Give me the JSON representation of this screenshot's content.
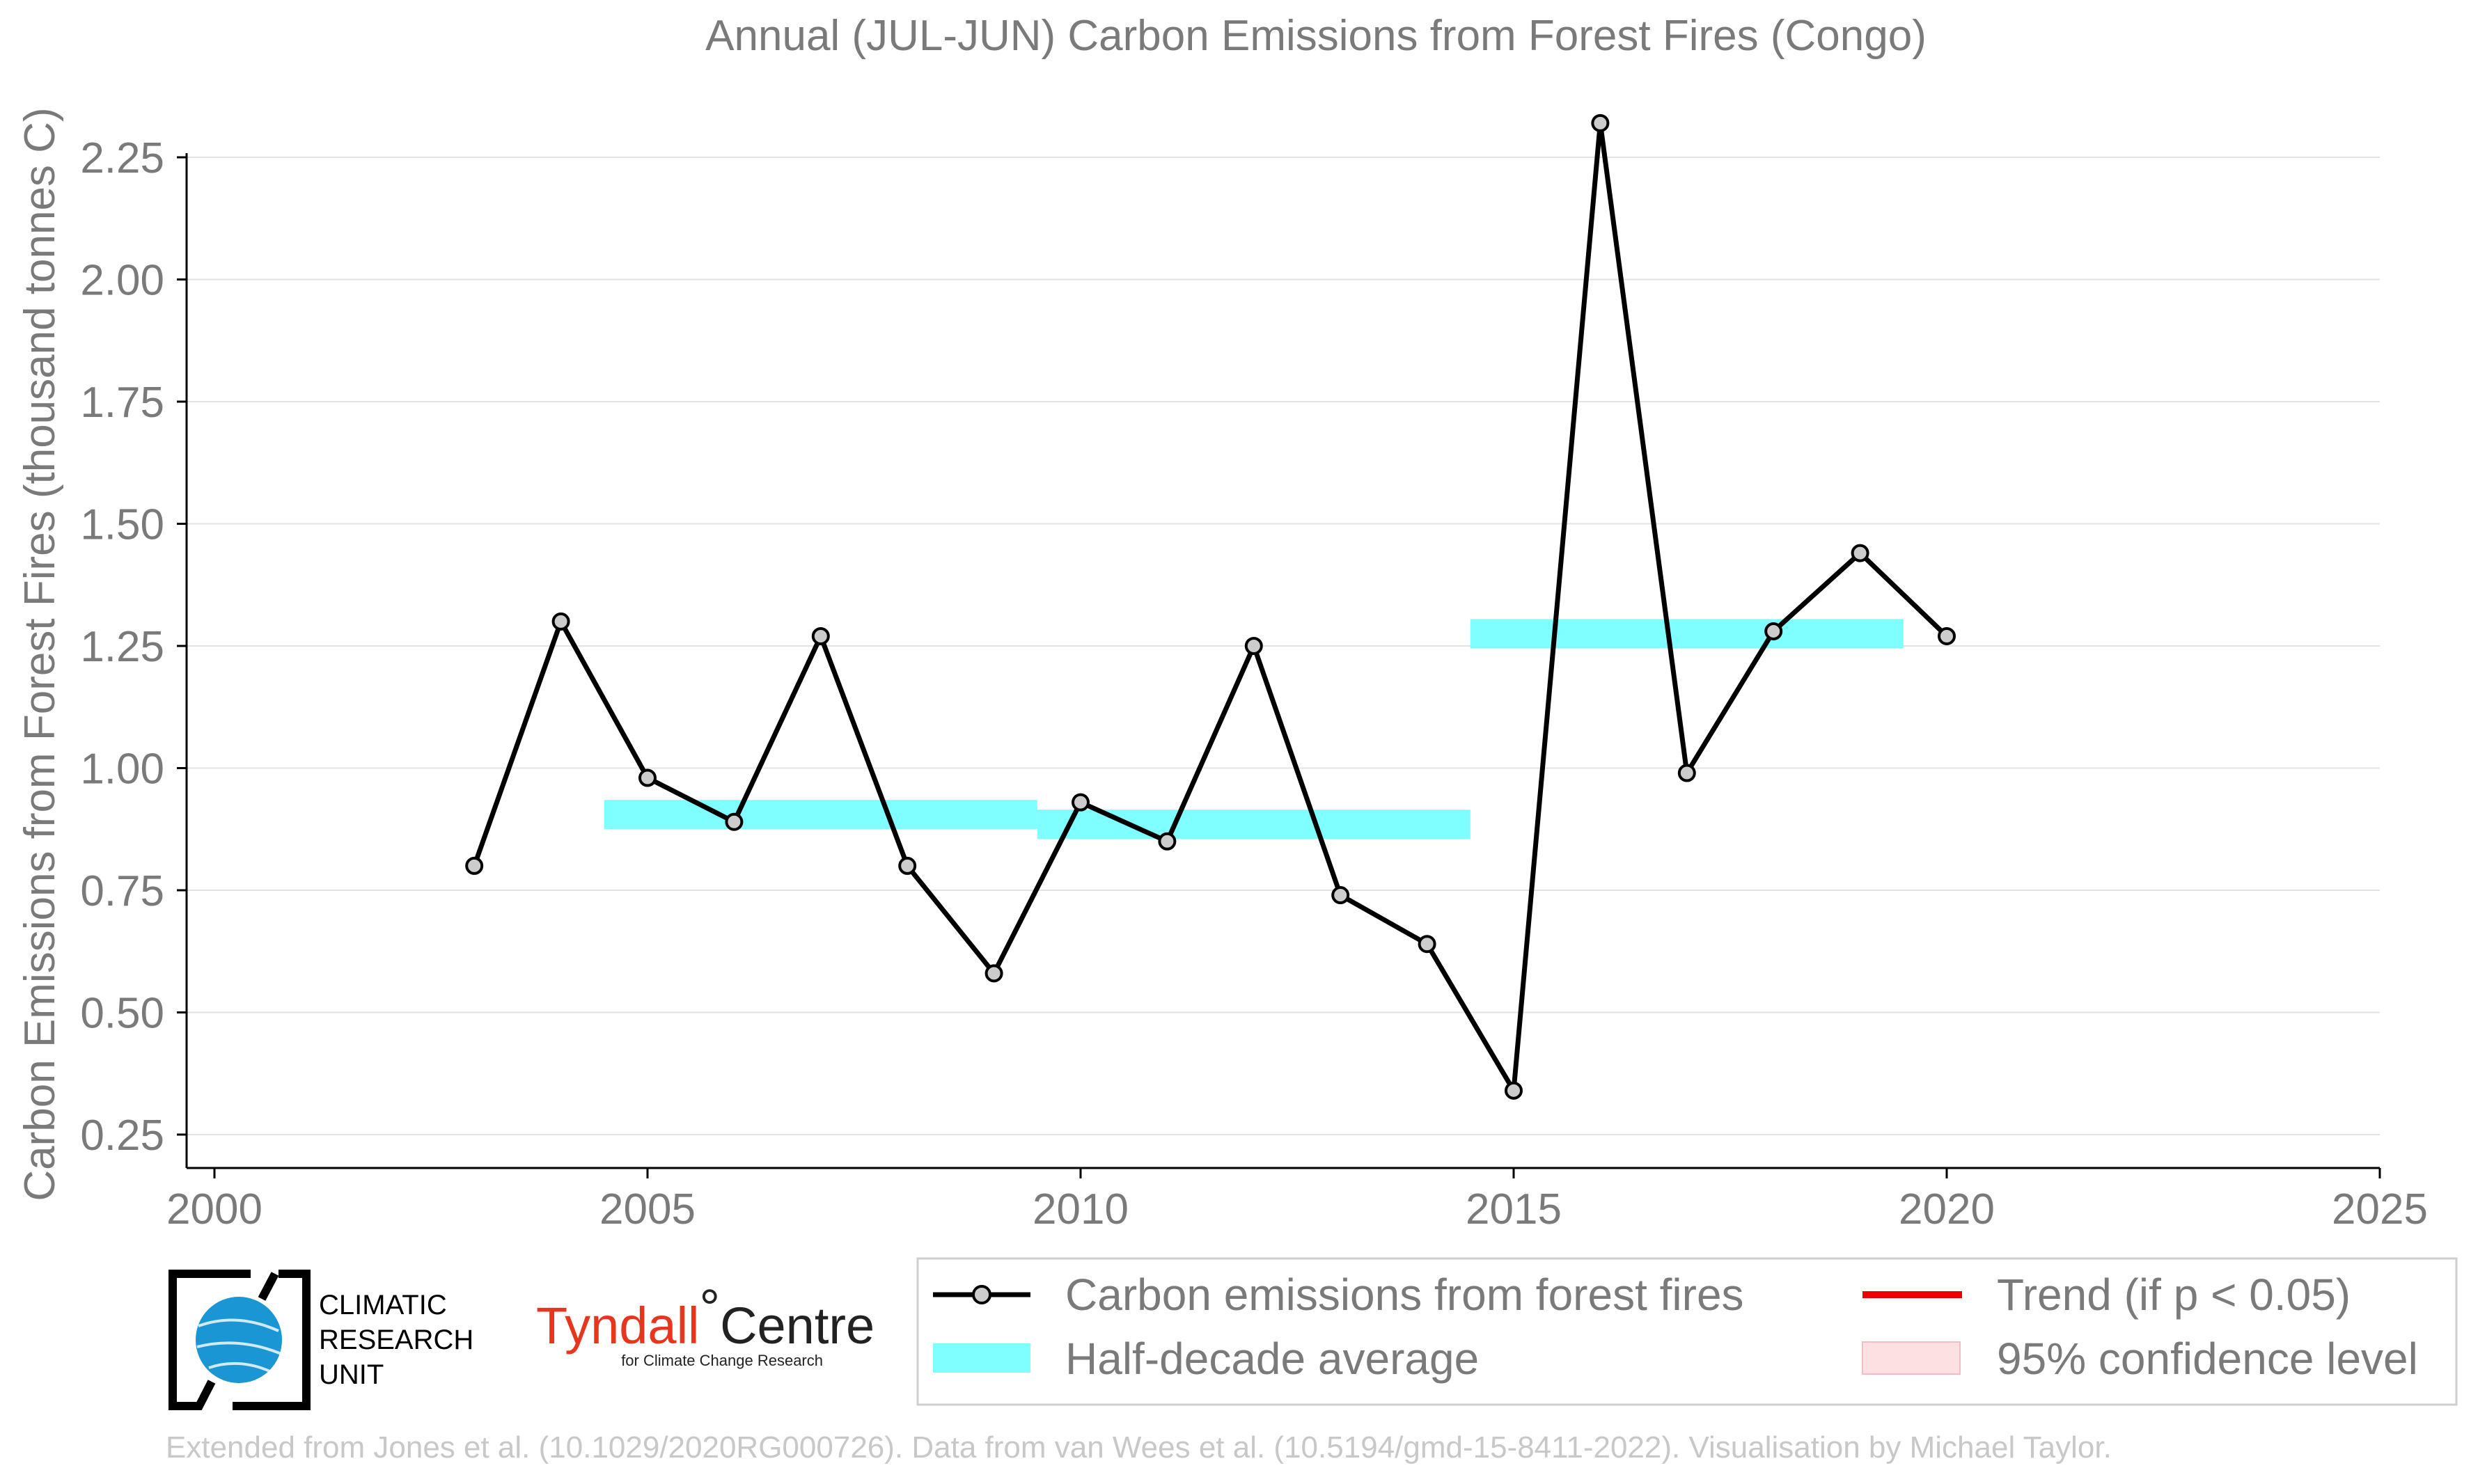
{
  "chart_data": {
    "type": "line",
    "title": "Annual (JUL-JUN) Carbon Emissions from Forest Fires (Congo)",
    "xlabel": "",
    "ylabel": "Carbon Emissions from Forest Fires (thousand tonnes C)",
    "xlim": [
      2000,
      2025
    ],
    "ylim": [
      0.25,
      2.32
    ],
    "x_ticks": [
      "2000",
      "2005",
      "2010",
      "2015",
      "2020",
      "2025"
    ],
    "y_ticks": [
      "0.25",
      "0.50",
      "0.75",
      "1.00",
      "1.25",
      "1.50",
      "1.75",
      "2.00",
      "2.25"
    ],
    "grid": true,
    "legend_position": "bottom-right",
    "series": [
      {
        "name": "Carbon emissions from forest fires",
        "color": "#000000",
        "marker_color": "#cccccc",
        "x": [
          2003,
          2004,
          2005,
          2006,
          2007,
          2008,
          2009,
          2010,
          2011,
          2012,
          2013,
          2014,
          2015,
          2016,
          2017,
          2018,
          2019,
          2020
        ],
        "y": [
          0.8,
          1.3,
          0.98,
          0.89,
          1.27,
          0.8,
          0.58,
          0.93,
          0.85,
          1.25,
          0.74,
          0.64,
          0.34,
          2.32,
          0.99,
          1.28,
          1.44,
          1.27
        ]
      },
      {
        "name": "Half-decade average",
        "color": "#7fffff",
        "segments": [
          {
            "x_start": 2004.5,
            "x_end": 2009.5,
            "y": 0.905
          },
          {
            "x_start": 2009.5,
            "x_end": 2014.5,
            "y": 0.885
          },
          {
            "x_start": 2014.5,
            "x_end": 2019.5,
            "y": 1.275
          }
        ]
      }
    ],
    "legend": [
      {
        "label": "Carbon emissions from forest fires",
        "kind": "line-marker",
        "color": "#000000"
      },
      {
        "label": "Trend (if p < 0.05)",
        "kind": "line",
        "color": "#ee0000"
      },
      {
        "label": "Half-decade average",
        "kind": "band",
        "color": "#7fffff"
      },
      {
        "label": "95% confidence level",
        "kind": "band",
        "color": "#fde0e2"
      }
    ]
  },
  "logos": {
    "cru_lines": [
      "CLIMATIC",
      "RESEARCH",
      "UNIT"
    ],
    "tyndall_name_red": "Tyndall",
    "tyndall_degree": "°",
    "tyndall_name_black": "Centre",
    "tyndall_sub": "for Climate Change Research"
  },
  "footer": "Extended from Jones et al. (10.1029/2020RG000726). Data from van Wees et al. (10.5194/gmd-15-8411-2022). Visualisation by Michael Taylor."
}
